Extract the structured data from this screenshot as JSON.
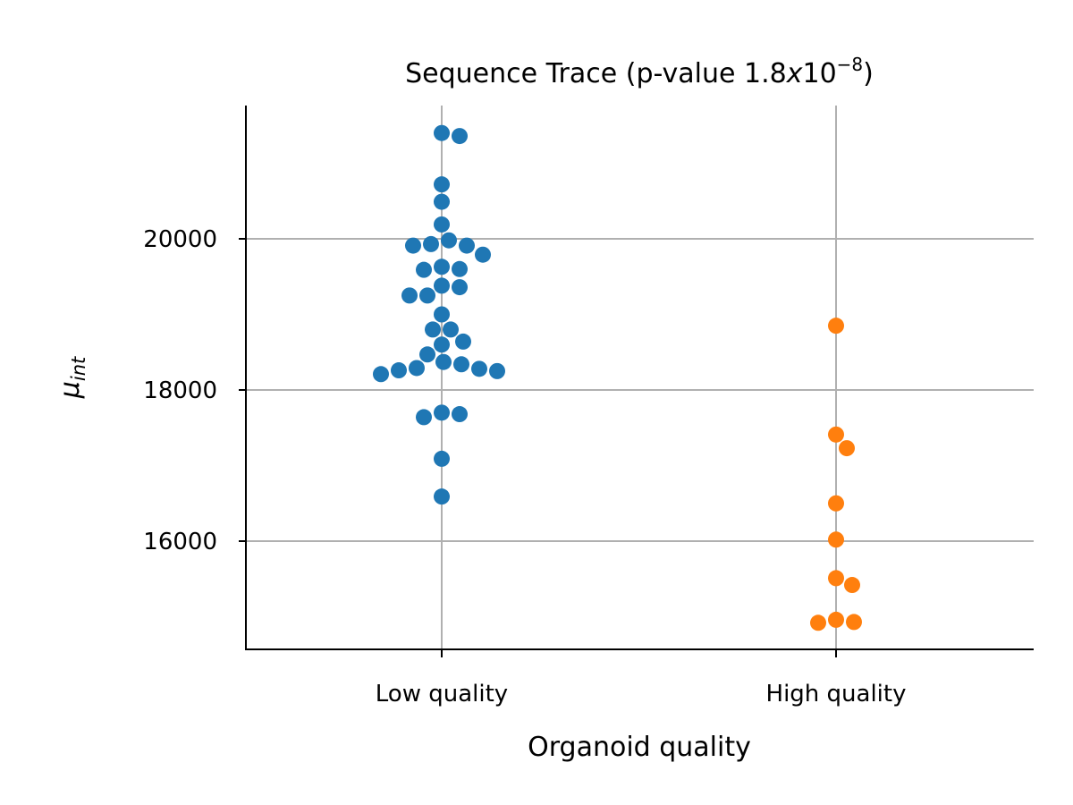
{
  "chart_data": {
    "type": "scatter",
    "title": {
      "prefix": "Sequence Trace (p-value 1.8",
      "times": "x",
      "base": "10",
      "exponent": "−8",
      "suffix": ")"
    },
    "xlabel": "Organoid quality",
    "ylabel": {
      "main": "μ",
      "sub": "int"
    },
    "categories": [
      "Low quality",
      "High quality"
    ],
    "ylim": [
      14600,
      21750
    ],
    "yticks": [
      16000,
      18000,
      20000
    ],
    "grid": true,
    "series": [
      {
        "category": "Low quality",
        "color": "#1f77b4",
        "values": [
          21400,
          21360,
          20720,
          20490,
          20190,
          19980,
          19910,
          19910,
          19930,
          19790,
          19600,
          19590,
          19630,
          19380,
          19250,
          19250,
          19360,
          19000,
          18800,
          18800,
          18640,
          18600,
          18470,
          18370,
          18290,
          18250,
          18210,
          18260,
          18280,
          18340,
          17680,
          17640,
          17700,
          17090,
          16590
        ]
      },
      {
        "category": "High quality",
        "color": "#ff7f0e",
        "values": [
          18850,
          17410,
          17230,
          16500,
          16020,
          15510,
          15420,
          14930,
          14920,
          14960
        ]
      }
    ]
  }
}
